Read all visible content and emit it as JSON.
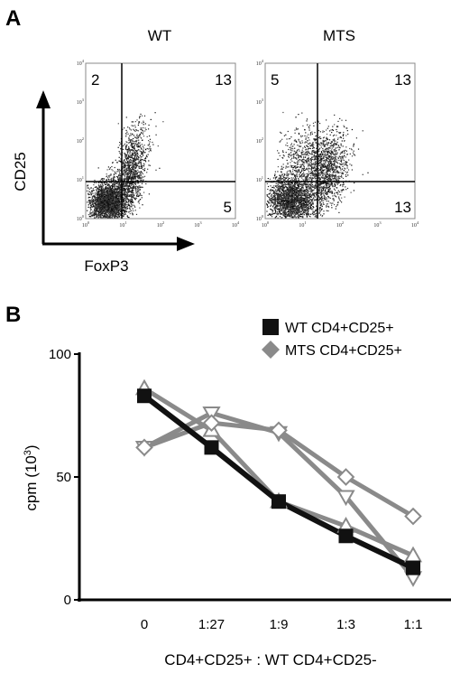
{
  "panel_a": {
    "letter": "A",
    "y_axis_label": "CD25",
    "x_axis_label": "FoxP3",
    "plots": [
      {
        "title": "WT",
        "quadrants": {
          "ul": "2",
          "ur": "13",
          "lr": "5"
        }
      },
      {
        "title": "MTS",
        "quadrants": {
          "ul": "5",
          "ur": "13",
          "lr": "13"
        }
      }
    ],
    "tick_base": "10",
    "tick_exponents": [
      "0",
      "1",
      "2",
      "3",
      "4"
    ]
  },
  "panel_b": {
    "letter": "B"
  },
  "chart_data": {
    "type": "line",
    "ylabel_base": "cpm (10",
    "ylabel_sup": "3",
    "ylabel_close": ")",
    "xlabel": "CD4+CD25+ : WT CD4+CD25-",
    "categories": [
      "0",
      "1:27",
      "1:9",
      "1:3",
      "1:1"
    ],
    "ylim": [
      0,
      100
    ],
    "yticks": [
      "0",
      "50",
      "100"
    ],
    "legend": [
      {
        "label": "WT CD4+CD25+",
        "marker": "square",
        "color": "#111111"
      },
      {
        "label": "MTS CD4+CD25+",
        "marker": "diamond",
        "color": "#8a8a8a"
      }
    ],
    "series": [
      {
        "group": "WT",
        "marker": "square",
        "color": "#111111",
        "values": [
          83,
          62,
          40,
          26,
          13
        ]
      },
      {
        "group": "MTS",
        "marker": "triangle-up",
        "color": "#8a8a8a",
        "values": [
          86,
          69,
          40,
          30,
          18
        ]
      },
      {
        "group": "MTS",
        "marker": "triangle-down",
        "color": "#8a8a8a",
        "values": [
          62,
          76,
          68,
          42,
          9
        ]
      },
      {
        "group": "MTS",
        "marker": "diamond",
        "color": "#8a8a8a",
        "values": [
          62,
          72,
          69,
          50,
          34
        ]
      }
    ]
  }
}
